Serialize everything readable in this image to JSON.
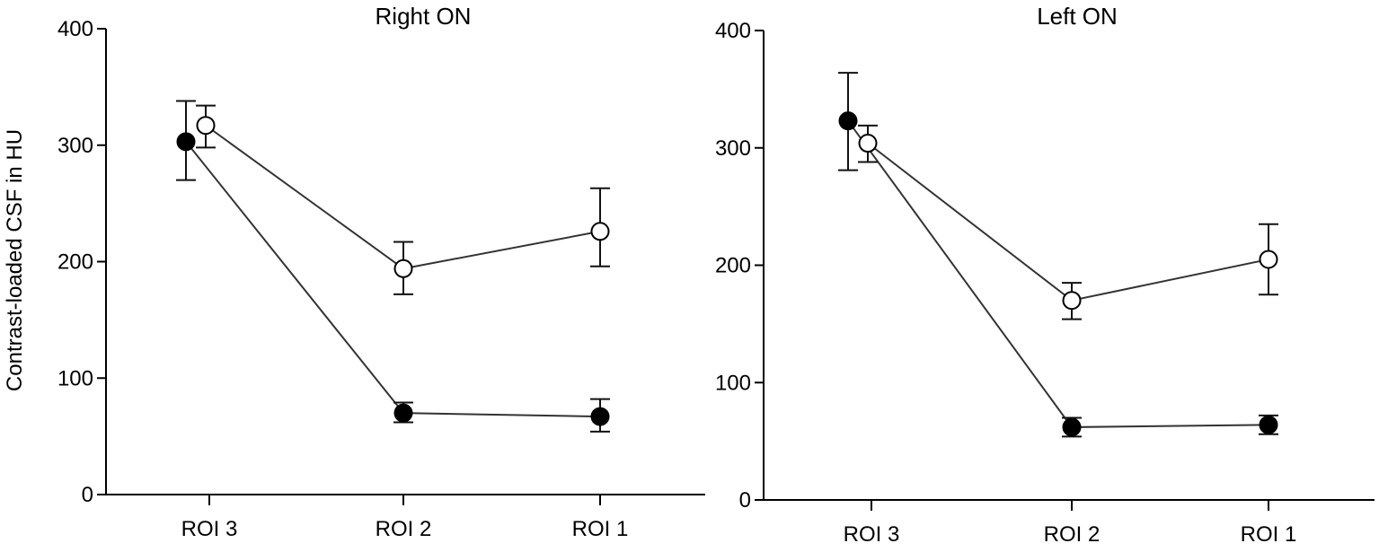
{
  "chart_data": [
    {
      "type": "line",
      "title": "Right ON",
      "ylabel": "Contrast-loaded CSF in HU",
      "xlabel": "",
      "categories": [
        "ROI 3",
        "ROI 2",
        "ROI 1"
      ],
      "y_ticks": [
        "0",
        "100",
        "200",
        "300",
        "400"
      ],
      "ylim": [
        0,
        400
      ],
      "grid": false,
      "series": [
        {
          "marker": "filled-circle",
          "color": "#000000",
          "values": [
            303,
            70,
            67
          ],
          "err_upper": [
            338,
            79,
            82
          ],
          "err_lower": [
            270,
            62,
            54
          ]
        },
        {
          "marker": "open-circle",
          "color": "#000000",
          "values": [
            317,
            194,
            226
          ],
          "err_upper": [
            334,
            217,
            263
          ],
          "err_lower": [
            298,
            172,
            196
          ]
        }
      ]
    },
    {
      "type": "line",
      "title": "Left ON",
      "ylabel": "",
      "xlabel": "",
      "categories": [
        "ROI 3",
        "ROI 2",
        "ROI 1"
      ],
      "y_ticks": [
        "0",
        "100",
        "200",
        "300",
        "400"
      ],
      "ylim": [
        0,
        400
      ],
      "grid": false,
      "series": [
        {
          "marker": "filled-circle",
          "color": "#000000",
          "values": [
            323,
            62,
            64
          ],
          "err_upper": [
            364,
            70,
            72
          ],
          "err_lower": [
            281,
            54,
            56
          ]
        },
        {
          "marker": "open-circle",
          "color": "#000000",
          "values": [
            304,
            170,
            205
          ],
          "err_upper": [
            319,
            185,
            235
          ],
          "err_lower": [
            288,
            154,
            175
          ]
        }
      ]
    }
  ]
}
